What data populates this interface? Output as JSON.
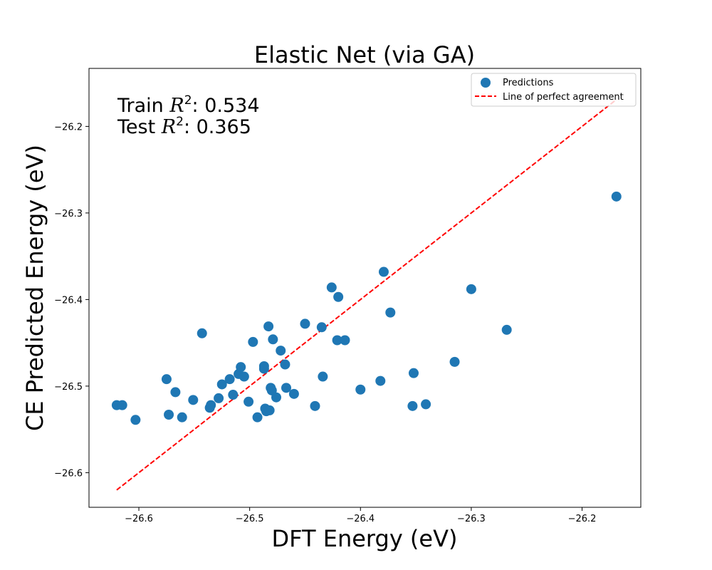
{
  "chart_data": {
    "type": "scatter",
    "title": "Elastic Net (via GA)",
    "xlabel": "DFT Energy (eV)",
    "ylabel": "CE Predicted Energy (eV)",
    "xlim": [
      -26.645,
      -26.147
    ],
    "ylim": [
      -26.64,
      -26.133
    ],
    "xticks": [
      -26.6,
      -26.5,
      -26.4,
      -26.3,
      -26.2
    ],
    "yticks": [
      -26.6,
      -26.5,
      -26.4,
      -26.3,
      -26.2
    ],
    "tick_format": "−26.1f",
    "grid": false,
    "annotations": {
      "train_prefix": "Train ",
      "test_prefix": "Test ",
      "r_symbol": "R",
      "r_sup": "2",
      "train_value": ": 0.534",
      "test_value": ": 0.365"
    },
    "legend": {
      "position": "top-right",
      "entries": [
        "Predictions",
        "Line of perfect agreement"
      ]
    },
    "series": [
      {
        "name": "Predictions",
        "color": "#1f77b4",
        "marker": "circle",
        "points": [
          [
            -26.62,
            -26.522
          ],
          [
            -26.615,
            -26.522
          ],
          [
            -26.603,
            -26.539
          ],
          [
            -26.575,
            -26.492
          ],
          [
            -26.573,
            -26.533
          ],
          [
            -26.567,
            -26.507
          ],
          [
            -26.561,
            -26.536
          ],
          [
            -26.551,
            -26.516
          ],
          [
            -26.543,
            -26.439
          ],
          [
            -26.536,
            -26.525
          ],
          [
            -26.535,
            -26.522
          ],
          [
            -26.528,
            -26.514
          ],
          [
            -26.525,
            -26.498
          ],
          [
            -26.518,
            -26.492
          ],
          [
            -26.515,
            -26.51
          ],
          [
            -26.51,
            -26.486
          ],
          [
            -26.508,
            -26.478
          ],
          [
            -26.505,
            -26.489
          ],
          [
            -26.501,
            -26.518
          ],
          [
            -26.497,
            -26.449
          ],
          [
            -26.493,
            -26.536
          ],
          [
            -26.487,
            -26.477
          ],
          [
            -26.487,
            -26.48
          ],
          [
            -26.486,
            -26.526
          ],
          [
            -26.485,
            -26.529
          ],
          [
            -26.483,
            -26.431
          ],
          [
            -26.482,
            -26.528
          ],
          [
            -26.481,
            -26.502
          ],
          [
            -26.48,
            -26.505
          ],
          [
            -26.479,
            -26.446
          ],
          [
            -26.476,
            -26.513
          ],
          [
            -26.472,
            -26.459
          ],
          [
            -26.468,
            -26.475
          ],
          [
            -26.467,
            -26.502
          ],
          [
            -26.46,
            -26.509
          ],
          [
            -26.45,
            -26.428
          ],
          [
            -26.441,
            -26.523
          ],
          [
            -26.435,
            -26.432
          ],
          [
            -26.434,
            -26.489
          ],
          [
            -26.426,
            -26.386
          ],
          [
            -26.421,
            -26.447
          ],
          [
            -26.42,
            -26.397
          ],
          [
            -26.414,
            -26.447
          ],
          [
            -26.4,
            -26.504
          ],
          [
            -26.382,
            -26.494
          ],
          [
            -26.379,
            -26.368
          ],
          [
            -26.373,
            -26.415
          ],
          [
            -26.353,
            -26.523
          ],
          [
            -26.352,
            -26.485
          ],
          [
            -26.341,
            -26.521
          ],
          [
            -26.315,
            -26.472
          ],
          [
            -26.3,
            -26.388
          ],
          [
            -26.268,
            -26.435
          ],
          [
            -26.169,
            -26.281
          ]
        ]
      },
      {
        "name": "Line of perfect agreement",
        "color": "#ff0000",
        "style": "dashed",
        "x": [
          -26.62,
          -26.169
        ],
        "y": [
          -26.62,
          -26.169
        ]
      }
    ]
  }
}
